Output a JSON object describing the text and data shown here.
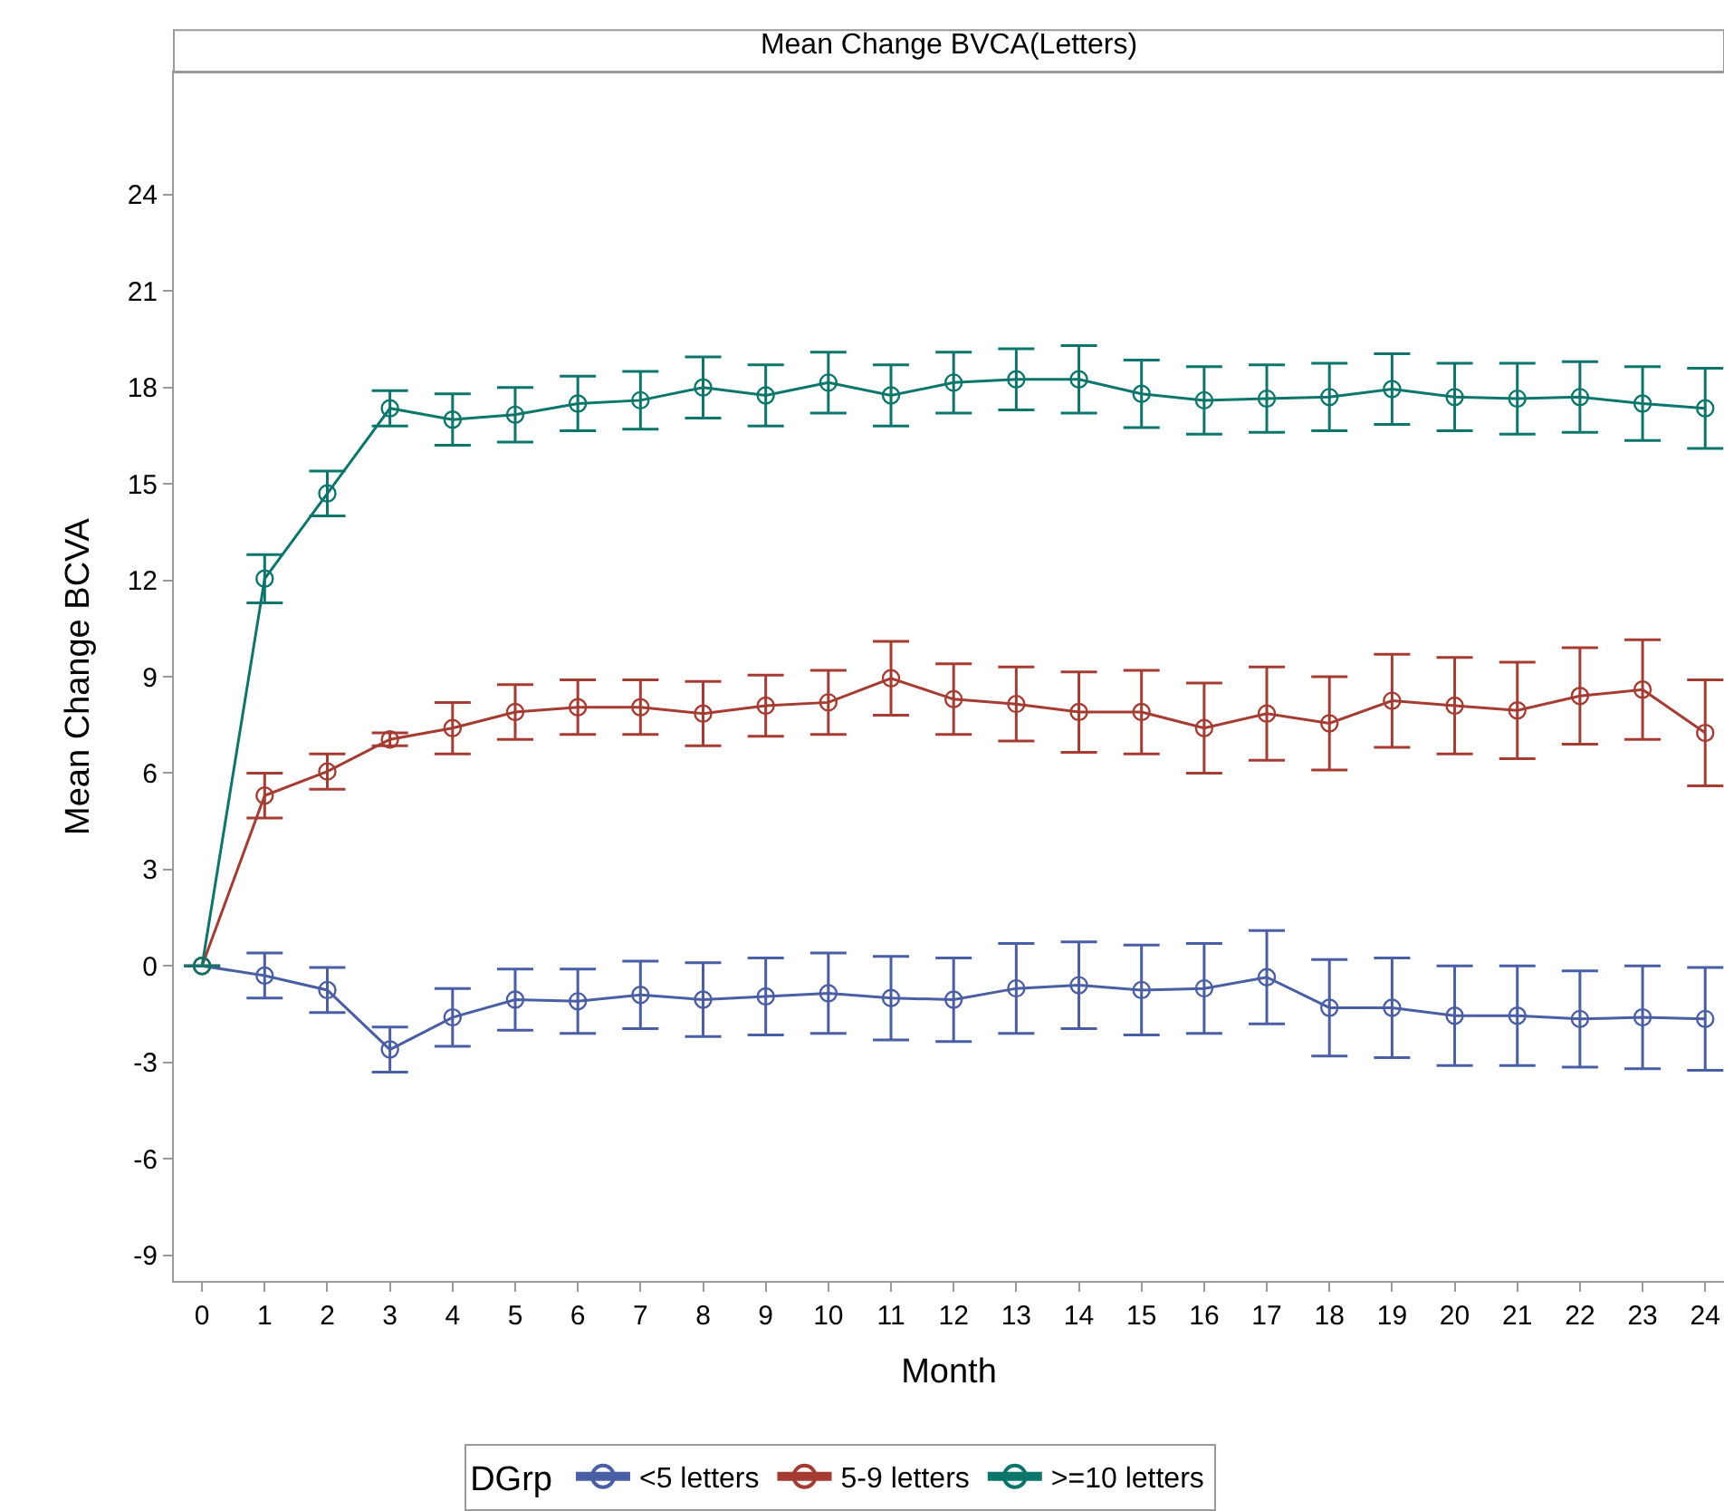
{
  "chart_data": {
    "type": "line",
    "title": "Mean Change BVCA(Letters)",
    "xlabel": "Month",
    "ylabel": "Mean Change BCVA",
    "legend_title": "DGrp",
    "x": [
      0,
      1,
      2,
      3,
      4,
      5,
      6,
      7,
      8,
      9,
      10,
      11,
      12,
      13,
      14,
      15,
      16,
      17,
      18,
      19,
      20,
      21,
      22,
      23,
      24
    ],
    "series": [
      {
        "name": "<5 letters",
        "color": "#4a5ea5",
        "values": [
          0,
          -0.3,
          -0.75,
          -2.6,
          -1.6,
          -1.05,
          -1.1,
          -0.9,
          -1.05,
          -0.95,
          -0.85,
          -1.0,
          -1.05,
          -0.7,
          -0.6,
          -0.75,
          -0.7,
          -0.35,
          -1.3,
          -1.3,
          -1.55,
          -1.55,
          -1.65,
          -1.6,
          -1.65
        ],
        "errors": [
          null,
          0.7,
          0.7,
          0.7,
          0.9,
          0.95,
          1.0,
          1.05,
          1.15,
          1.2,
          1.25,
          1.3,
          1.3,
          1.4,
          1.35,
          1.4,
          1.4,
          1.45,
          1.5,
          1.55,
          1.55,
          1.55,
          1.5,
          1.6,
          1.6
        ]
      },
      {
        "name": "5-9 letters",
        "color": "#a63c31",
        "values": [
          0,
          5.3,
          6.05,
          7.05,
          7.4,
          7.9,
          8.05,
          8.05,
          7.85,
          8.1,
          8.2,
          8.95,
          8.3,
          8.15,
          7.9,
          7.9,
          7.4,
          7.85,
          7.55,
          8.25,
          8.1,
          7.95,
          8.4,
          8.6,
          7.25
        ],
        "errors": [
          null,
          0.7,
          0.55,
          0.2,
          0.8,
          0.85,
          0.85,
          0.85,
          1.0,
          0.95,
          1.0,
          1.15,
          1.1,
          1.15,
          1.25,
          1.3,
          1.4,
          1.45,
          1.45,
          1.45,
          1.5,
          1.5,
          1.5,
          1.55,
          1.65
        ]
      },
      {
        "name": ">=10 letters",
        "color": "#0b766c",
        "values": [
          0,
          12.05,
          14.7,
          17.35,
          17.0,
          17.15,
          17.5,
          17.6,
          18.0,
          17.75,
          18.15,
          17.75,
          18.15,
          18.25,
          18.25,
          17.8,
          17.6,
          17.65,
          17.7,
          17.95,
          17.7,
          17.65,
          17.7,
          17.5,
          17.35
        ],
        "errors": [
          null,
          0.75,
          0.7,
          0.55,
          0.8,
          0.85,
          0.85,
          0.9,
          0.95,
          0.95,
          0.95,
          0.95,
          0.95,
          0.95,
          1.05,
          1.05,
          1.05,
          1.05,
          1.05,
          1.1,
          1.05,
          1.1,
          1.1,
          1.15,
          1.25
        ]
      }
    ],
    "xlim": [
      -0.45,
      24.3
    ],
    "xticks": [
      0,
      1,
      2,
      3,
      4,
      5,
      6,
      7,
      8,
      9,
      10,
      11,
      12,
      13,
      14,
      15,
      16,
      17,
      18,
      19,
      20,
      21,
      22,
      23,
      24
    ],
    "ylim": [
      -9.8,
      27.8
    ],
    "yticks": [
      -9,
      -6,
      -3,
      0,
      3,
      6,
      9,
      12,
      15,
      18,
      21,
      24
    ],
    "legend": "bottom",
    "marker": "circle",
    "line_style": "solid"
  }
}
